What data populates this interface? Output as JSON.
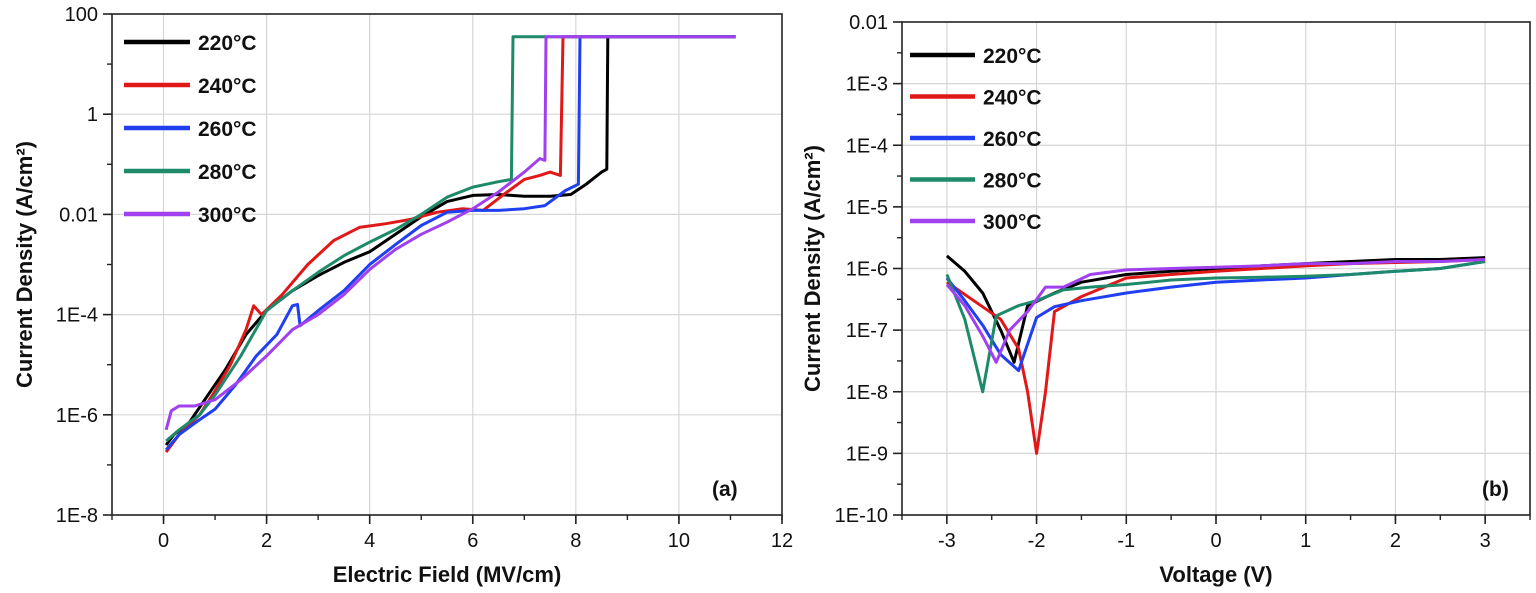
{
  "chart_data": [
    {
      "type": "line",
      "panel_label": "(a)",
      "xlabel": "Electric Field (MV/cm)",
      "ylabel": "Current Density (A/cm²)",
      "xlim": [
        -1,
        12
      ],
      "ylim": [
        1e-08,
        100
      ],
      "yscale": "log",
      "grid": true,
      "legend_position": "top-left",
      "x_ticks": [
        0,
        2,
        4,
        6,
        8,
        10,
        12
      ],
      "x_tick_labels": [
        "0",
        "2",
        "4",
        "6",
        "8",
        "10",
        "12"
      ],
      "y_ticks": [
        1e-08,
        1e-06,
        0.0001,
        0.01,
        1,
        100
      ],
      "y_tick_labels": [
        "1E-8",
        "1E-6",
        "1E-4",
        "0.01",
        "1",
        "100"
      ],
      "series": [
        {
          "name": "220°C",
          "color": "#000000",
          "points": [
            [
              0.05,
              2.5e-07
            ],
            [
              0.2,
              4e-07
            ],
            [
              0.5,
              7e-07
            ],
            [
              0.8,
              2e-06
            ],
            [
              1.2,
              8e-06
            ],
            [
              1.6,
              4e-05
            ],
            [
              2.0,
              0.00012
            ],
            [
              2.5,
              0.0003
            ],
            [
              3.0,
              0.0006
            ],
            [
              3.5,
              0.0011
            ],
            [
              4.0,
              0.0018
            ],
            [
              4.5,
              0.004
            ],
            [
              5.0,
              0.009
            ],
            [
              5.5,
              0.018
            ],
            [
              6.0,
              0.024
            ],
            [
              6.5,
              0.025
            ],
            [
              7.0,
              0.023
            ],
            [
              7.5,
              0.023
            ],
            [
              7.9,
              0.025
            ],
            [
              8.2,
              0.04
            ],
            [
              8.5,
              0.07
            ],
            [
              8.6,
              0.08
            ],
            [
              8.62,
              35
            ],
            [
              9.0,
              35
            ],
            [
              11.1,
              35
            ]
          ]
        },
        {
          "name": "240°C",
          "color": "#e01818",
          "points": [
            [
              0.05,
              1.8e-07
            ],
            [
              0.3,
              4e-07
            ],
            [
              0.7,
              1e-06
            ],
            [
              1.0,
              3e-06
            ],
            [
              1.3,
              1e-05
            ],
            [
              1.6,
              5e-05
            ],
            [
              1.75,
              0.00015
            ],
            [
              1.9,
              0.0001
            ],
            [
              2.3,
              0.00025
            ],
            [
              2.8,
              0.001
            ],
            [
              3.3,
              0.003
            ],
            [
              3.8,
              0.0055
            ],
            [
              4.3,
              0.0065
            ],
            [
              4.8,
              0.008
            ],
            [
              5.3,
              0.011
            ],
            [
              5.8,
              0.013
            ],
            [
              6.2,
              0.012
            ],
            [
              6.6,
              0.025
            ],
            [
              7.0,
              0.05
            ],
            [
              7.3,
              0.06
            ],
            [
              7.5,
              0.07
            ],
            [
              7.7,
              0.06
            ],
            [
              7.75,
              35
            ],
            [
              11.1,
              35
            ]
          ]
        },
        {
          "name": "260°C",
          "color": "#1f3ff0",
          "points": [
            [
              0.05,
              2e-07
            ],
            [
              0.3,
              4e-07
            ],
            [
              0.7,
              8e-07
            ],
            [
              1.0,
              1.3e-06
            ],
            [
              1.4,
              4e-06
            ],
            [
              1.8,
              1.5e-05
            ],
            [
              2.2,
              4e-05
            ],
            [
              2.5,
              0.00015
            ],
            [
              2.6,
              0.00016
            ],
            [
              2.65,
              6e-05
            ],
            [
              3.0,
              0.00012
            ],
            [
              3.5,
              0.0003
            ],
            [
              4.0,
              0.001
            ],
            [
              4.5,
              0.0025
            ],
            [
              5.0,
              0.006
            ],
            [
              5.5,
              0.011
            ],
            [
              6.0,
              0.012
            ],
            [
              6.5,
              0.012
            ],
            [
              7.0,
              0.013
            ],
            [
              7.4,
              0.015
            ],
            [
              7.8,
              0.03
            ],
            [
              8.05,
              0.04
            ],
            [
              8.08,
              35
            ],
            [
              11.1,
              35
            ]
          ]
        },
        {
          "name": "280°C",
          "color": "#1e8a6a",
          "points": [
            [
              0.05,
              3e-07
            ],
            [
              0.3,
              5e-07
            ],
            [
              0.7,
              1e-06
            ],
            [
              1.0,
              2.5e-06
            ],
            [
              1.5,
              1.5e-05
            ],
            [
              2.0,
              0.00012
            ],
            [
              2.5,
              0.0003
            ],
            [
              3.0,
              0.0007
            ],
            [
              3.5,
              0.0015
            ],
            [
              4.0,
              0.0028
            ],
            [
              4.5,
              0.005
            ],
            [
              5.0,
              0.01
            ],
            [
              5.5,
              0.022
            ],
            [
              6.0,
              0.035
            ],
            [
              6.5,
              0.045
            ],
            [
              6.75,
              0.05
            ],
            [
              6.78,
              35
            ],
            [
              11.1,
              35
            ]
          ]
        },
        {
          "name": "300°C",
          "color": "#a040ee",
          "points": [
            [
              0.05,
              5e-07
            ],
            [
              0.15,
              1.2e-06
            ],
            [
              0.3,
              1.5e-06
            ],
            [
              0.6,
              1.5e-06
            ],
            [
              1.0,
              2e-06
            ],
            [
              1.5,
              5e-06
            ],
            [
              2.0,
              1.5e-05
            ],
            [
              2.5,
              5e-05
            ],
            [
              3.0,
              0.0001
            ],
            [
              3.5,
              0.00025
            ],
            [
              4.0,
              0.0008
            ],
            [
              4.5,
              0.002
            ],
            [
              5.0,
              0.004
            ],
            [
              5.5,
              0.007
            ],
            [
              6.0,
              0.013
            ],
            [
              6.5,
              0.028
            ],
            [
              7.0,
              0.07
            ],
            [
              7.3,
              0.13
            ],
            [
              7.4,
              0.12
            ],
            [
              7.42,
              35
            ],
            [
              11.1,
              35
            ]
          ]
        }
      ]
    },
    {
      "type": "line",
      "panel_label": "(b)",
      "xlabel": "Voltage (V)",
      "ylabel": "Current Density (A/cm²)",
      "xlim": [
        -3.5,
        3.5
      ],
      "ylim": [
        1e-10,
        0.01
      ],
      "yscale": "log",
      "grid": true,
      "legend_position": "top-left",
      "x_ticks": [
        -3,
        -2,
        -1,
        0,
        1,
        2,
        3
      ],
      "x_tick_labels": [
        "-3",
        "-2",
        "-1",
        "0",
        "1",
        "2",
        "3"
      ],
      "y_ticks": [
        1e-10,
        1e-09,
        1e-08,
        1e-07,
        1e-06,
        1e-05,
        0.0001,
        0.001,
        0.01
      ],
      "y_tick_labels": [
        "1E-10",
        "1E-9",
        "1E-8",
        "1E-7",
        "1E-6",
        "1E-5",
        "1E-4",
        "1E-3",
        "0.01"
      ],
      "series": [
        {
          "name": "220°C",
          "color": "#000000",
          "points": [
            [
              -3,
              1.6e-06
            ],
            [
              -2.8,
              9e-07
            ],
            [
              -2.6,
              4e-07
            ],
            [
              -2.4,
              1e-07
            ],
            [
              -2.25,
              3e-08
            ],
            [
              -2.1,
              2.5e-07
            ],
            [
              -1.8,
              4e-07
            ],
            [
              -1.5,
              6e-07
            ],
            [
              -1.0,
              8e-07
            ],
            [
              -0.5,
              9e-07
            ],
            [
              0,
              1e-06
            ],
            [
              0.5,
              1.1e-06
            ],
            [
              1.0,
              1.2e-06
            ],
            [
              1.5,
              1.3e-06
            ],
            [
              2.0,
              1.4e-06
            ],
            [
              2.5,
              1.4e-06
            ],
            [
              3.0,
              1.5e-06
            ]
          ]
        },
        {
          "name": "240°C",
          "color": "#e01818",
          "points": [
            [
              -3,
              6e-07
            ],
            [
              -2.7,
              3e-07
            ],
            [
              -2.4,
              1.5e-07
            ],
            [
              -2.2,
              5e-08
            ],
            [
              -2.1,
              1e-08
            ],
            [
              -2.0,
              1e-09
            ],
            [
              -1.9,
              1e-08
            ],
            [
              -1.8,
              2e-07
            ],
            [
              -1.5,
              3.5e-07
            ],
            [
              -1.0,
              7e-07
            ],
            [
              -0.5,
              8e-07
            ],
            [
              0,
              9e-07
            ],
            [
              0.5,
              1e-06
            ],
            [
              1.0,
              1.1e-06
            ],
            [
              1.5,
              1.2e-06
            ],
            [
              2.0,
              1.25e-06
            ],
            [
              2.5,
              1.3e-06
            ],
            [
              3.0,
              1.4e-06
            ]
          ]
        },
        {
          "name": "260°C",
          "color": "#1f3ff0",
          "points": [
            [
              -3,
              7e-07
            ],
            [
              -2.8,
              3e-07
            ],
            [
              -2.6,
              1.2e-07
            ],
            [
              -2.4,
              4e-08
            ],
            [
              -2.2,
              2.2e-08
            ],
            [
              -2.0,
              1.6e-07
            ],
            [
              -1.8,
              2.4e-07
            ],
            [
              -1.5,
              3e-07
            ],
            [
              -1.0,
              4e-07
            ],
            [
              -0.5,
              5e-07
            ],
            [
              0,
              6e-07
            ],
            [
              0.5,
              6.5e-07
            ],
            [
              1.0,
              7e-07
            ],
            [
              1.5,
              8e-07
            ],
            [
              2.0,
              9e-07
            ],
            [
              2.5,
              1e-06
            ],
            [
              3.0,
              1.3e-06
            ]
          ]
        },
        {
          "name": "280°C",
          "color": "#1e8a6a",
          "points": [
            [
              -3,
              8e-07
            ],
            [
              -2.8,
              1.5e-07
            ],
            [
              -2.6,
              1e-08
            ],
            [
              -2.45,
              1.7e-07
            ],
            [
              -2.2,
              2.5e-07
            ],
            [
              -2.0,
              3e-07
            ],
            [
              -1.7,
              4.5e-07
            ],
            [
              -1.4,
              5e-07
            ],
            [
              -1.0,
              5.5e-07
            ],
            [
              -0.5,
              6.5e-07
            ],
            [
              0,
              7e-07
            ],
            [
              0.5,
              7.2e-07
            ],
            [
              1.0,
              7.5e-07
            ],
            [
              1.5,
              8e-07
            ],
            [
              2.0,
              9e-07
            ],
            [
              2.5,
              1e-06
            ],
            [
              3.0,
              1.3e-06
            ]
          ]
        },
        {
          "name": "300°C",
          "color": "#a040ee",
          "points": [
            [
              -3,
              5.5e-07
            ],
            [
              -2.8,
              2.5e-07
            ],
            [
              -2.6,
              8e-08
            ],
            [
              -2.45,
              3e-08
            ],
            [
              -2.3,
              1e-07
            ],
            [
              -2.1,
              2e-07
            ],
            [
              -1.9,
              5e-07
            ],
            [
              -1.7,
              5e-07
            ],
            [
              -1.4,
              8e-07
            ],
            [
              -1.0,
              9.5e-07
            ],
            [
              -0.5,
              1e-06
            ],
            [
              0,
              1.05e-06
            ],
            [
              0.5,
              1.1e-06
            ],
            [
              1.0,
              1.2e-06
            ],
            [
              1.5,
              1.2e-06
            ],
            [
              2.0,
              1.3e-06
            ],
            [
              2.5,
              1.3e-06
            ],
            [
              3.0,
              1.4e-06
            ]
          ]
        }
      ]
    }
  ]
}
